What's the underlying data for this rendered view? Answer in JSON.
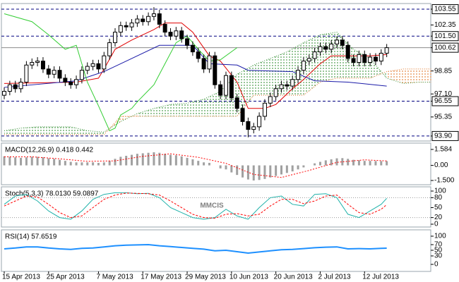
{
  "watermark": "MMCIS",
  "chart_data": [
    {
      "type": "candlestick",
      "categories": [
        "15 Apr 2013",
        null,
        null,
        null,
        null,
        null,
        null,
        null,
        "25 Apr 2013",
        null,
        null,
        null,
        null,
        null,
        null,
        null,
        null,
        "7 May 2013",
        null,
        null,
        null,
        null,
        null,
        null,
        null,
        "17 May 2013",
        null,
        null,
        null,
        null,
        null,
        null,
        null,
        "29 May 2013",
        null,
        null,
        null,
        null,
        null,
        null,
        null,
        "10 Jun 2013",
        null,
        null,
        null,
        null,
        null,
        null,
        null,
        "20 Jun 2013",
        null,
        null,
        null,
        null,
        null,
        null,
        null,
        "2 Jul 2013",
        null,
        null,
        null,
        null,
        null,
        null,
        null,
        "12 Jul 2013",
        null,
        null,
        null,
        null
      ],
      "open": [
        97.0,
        97.3,
        97.8,
        97.5,
        98.0,
        99.3,
        99.5,
        99.6,
        99.0,
        98.6,
        98.9,
        98.3,
        98.0,
        97.8,
        98.2,
        98.9,
        99.2,
        99.4,
        99.0,
        100.0,
        101.0,
        101.8,
        102.3,
        102.2,
        102.5,
        102.8,
        102.6,
        103.0,
        103.2,
        102.4,
        101.8,
        101.5,
        101.9,
        101.3,
        100.8,
        100.3,
        99.8,
        99.0,
        100.0,
        97.8,
        97.0,
        98.5,
        96.8,
        96.0,
        95.0,
        94.4,
        94.6,
        95.4,
        96.4,
        96.9,
        97.5,
        97.8,
        97.7,
        98.2,
        98.9,
        99.6,
        99.8,
        100.3,
        100.7,
        100.5,
        100.9,
        101.2,
        100.8,
        99.8,
        99.5,
        100.1,
        99.5,
        99.9,
        99.6,
        100.2
      ],
      "high": [
        97.6,
        98.1,
        98.1,
        98.3,
        99.6,
        99.8,
        99.9,
        99.9,
        99.3,
        99.2,
        99.2,
        98.6,
        98.3,
        98.5,
        99.2,
        99.5,
        99.7,
        99.7,
        100.3,
        101.3,
        102.1,
        102.6,
        102.6,
        102.8,
        103.1,
        103.1,
        103.3,
        103.7,
        103.5,
        102.7,
        102.1,
        102.2,
        102.2,
        101.6,
        101.1,
        100.6,
        100.1,
        100.3,
        100.3,
        98.1,
        98.8,
        98.8,
        97.1,
        96.3,
        95.3,
        94.9,
        95.7,
        96.7,
        97.2,
        97.8,
        98.1,
        98.1,
        98.5,
        99.2,
        99.9,
        100.1,
        100.6,
        101.0,
        101.0,
        101.2,
        101.5,
        101.5,
        101.1,
        100.1,
        100.4,
        100.4,
        100.2,
        100.2,
        100.5,
        100.9
      ],
      "low": [
        96.7,
        97.0,
        97.2,
        97.2,
        97.7,
        99.0,
        99.2,
        98.7,
        98.3,
        98.3,
        98.0,
        97.7,
        97.5,
        97.5,
        97.9,
        98.6,
        98.9,
        98.7,
        98.7,
        99.7,
        100.7,
        101.5,
        101.9,
        101.9,
        102.2,
        102.3,
        102.3,
        102.7,
        102.1,
        101.5,
        101.2,
        101.2,
        101.0,
        100.5,
        100.0,
        99.5,
        98.7,
        98.7,
        97.5,
        96.7,
        96.7,
        96.5,
        95.7,
        94.7,
        93.8,
        94.1,
        94.3,
        95.1,
        96.1,
        96.6,
        97.2,
        97.4,
        97.4,
        97.9,
        98.6,
        99.3,
        99.5,
        100.0,
        100.2,
        100.2,
        100.6,
        100.5,
        99.5,
        99.2,
        99.2,
        99.2,
        99.2,
        99.3,
        99.3,
        99.9
      ],
      "close": [
        97.3,
        97.8,
        97.5,
        98.0,
        99.3,
        99.5,
        99.6,
        99.0,
        98.6,
        98.9,
        98.3,
        98.0,
        97.8,
        98.2,
        98.9,
        99.2,
        99.4,
        99.0,
        100.0,
        101.0,
        101.8,
        102.3,
        102.2,
        102.5,
        102.8,
        102.6,
        103.0,
        103.2,
        102.4,
        101.8,
        101.5,
        101.9,
        101.3,
        100.8,
        100.3,
        99.8,
        99.0,
        100.0,
        97.8,
        97.0,
        98.5,
        96.8,
        96.0,
        95.0,
        94.4,
        94.6,
        95.4,
        96.4,
        96.9,
        97.5,
        97.8,
        97.7,
        98.2,
        98.9,
        99.6,
        99.8,
        100.3,
        100.7,
        100.5,
        100.9,
        101.2,
        100.8,
        99.8,
        99.5,
        100.1,
        99.5,
        99.9,
        99.6,
        100.2,
        100.62
      ],
      "bull_color": "#ffffff",
      "bear_color": "#000000",
      "ylim": [
        93.52,
        103.98
      ],
      "yticks": [
        103.55,
        102.35,
        {
          "value": 101.5,
          "label": "101.50"
        },
        100.62,
        98.85,
        {
          "value": 97.1,
          "label": "97.10"
        },
        96.55,
        95.35,
        {
          "value": 93.9,
          "label": "93.90"
        }
      ],
      "levels": [
        103.55,
        101.5,
        96.55,
        93.9
      ],
      "level_color": "#000080",
      "boxed_levels": true,
      "last_price": 100.62,
      "cloud": {
        "x": [
          0,
          3,
          6,
          9,
          12,
          15,
          18,
          21,
          24,
          27,
          30,
          33,
          36,
          39,
          42,
          45,
          48,
          51,
          54,
          57,
          60,
          63,
          66,
          69,
          72,
          75,
          77
        ],
        "span_a": [
          94.3,
          94.5,
          94.6,
          94.6,
          94.6,
          94.3,
          94.2,
          95.0,
          95.6,
          96.0,
          96.3,
          96.4,
          96.7,
          97.3,
          98.6,
          99.3,
          99.8,
          100.3,
          101.0,
          101.6,
          101.8,
          100.5,
          99.8,
          98.3,
          97.9,
          98.0,
          98.0
        ],
        "span_b": [
          94.0,
          94.0,
          94.0,
          94.0,
          94.0,
          94.0,
          94.0,
          95.4,
          95.4,
          95.4,
          95.4,
          95.4,
          95.4,
          95.4,
          95.4,
          97.0,
          97.0,
          97.0,
          97.0,
          98.0,
          98.3,
          98.3,
          98.3,
          98.8,
          99.0,
          99.0,
          99.0
        ],
        "colors": [
          "#2e8b2e",
          "#e07020"
        ]
      },
      "series": [
        {
          "color": "#e00000",
          "x": [
            0,
            13,
            17,
            18,
            20,
            23,
            27,
            29,
            32,
            34,
            37,
            39,
            42,
            44,
            47,
            49,
            52,
            54,
            57,
            59,
            62,
            66,
            69
          ],
          "values": [
            97.9,
            98.0,
            98.3,
            99.0,
            100.5,
            101.2,
            102.0,
            102.5,
            102.5,
            101.8,
            100.0,
            99.6,
            98.0,
            96.0,
            96.0,
            96.3,
            97.5,
            98.2,
            99.4,
            100.0,
            100.0,
            100.0,
            100.1
          ]
        },
        {
          "color": "#1a1aa8",
          "x": [
            0,
            13,
            18,
            22,
            28,
            34,
            37,
            42,
            44,
            52,
            56,
            62,
            69
          ],
          "values": [
            97.6,
            98.1,
            98.8,
            99.6,
            100.8,
            100.8,
            99.4,
            99.3,
            98.9,
            98.8,
            98.1,
            98.0,
            97.7
          ]
        },
        {
          "color": "#32cd32",
          "x": [
            0,
            5,
            8,
            11,
            13,
            14,
            15,
            17,
            19,
            20,
            21,
            23,
            24,
            27,
            29,
            31,
            33,
            35,
            37,
            39,
            42
          ],
          "values": [
            103.2,
            102.6,
            101.6,
            100.5,
            100.8,
            99.4,
            98.0,
            96.2,
            94.3,
            94.5,
            95.5,
            96.0,
            96.5,
            97.8,
            99.4,
            101.0,
            101.5,
            100.5,
            99.6,
            99.7,
            100.62
          ]
        }
      ]
    },
    {
      "type": "bar",
      "title": "MACD(12,26,9) 0.418 0.442",
      "values": [
        0.9,
        0.85,
        0.8,
        0.75,
        0.8,
        0.85,
        0.85,
        0.8,
        0.7,
        0.65,
        0.55,
        0.45,
        0.35,
        0.3,
        0.3,
        0.3,
        0.3,
        0.25,
        0.3,
        0.45,
        0.65,
        0.85,
        0.95,
        1.05,
        1.15,
        1.2,
        1.25,
        1.3,
        1.25,
        1.15,
        1.05,
        1.0,
        0.9,
        0.75,
        0.6,
        0.45,
        0.3,
        0.25,
        0.0,
        -0.3,
        -0.4,
        -0.7,
        -0.95,
        -1.2,
        -1.4,
        -1.5,
        -1.45,
        -1.35,
        -1.2,
        -1.05,
        -0.9,
        -0.75,
        -0.6,
        -0.4,
        -0.2,
        0.0,
        0.2,
        0.35,
        0.5,
        0.6,
        0.7,
        0.72,
        0.65,
        0.55,
        0.5,
        0.45,
        0.45,
        0.43,
        0.42,
        0.418
      ],
      "color": "#a0a0a0",
      "ylim": [
        -1.92,
        2.21
      ],
      "yticks": [
        1.584,
        {
          "value": 0,
          "label": "0.00"
        },
        {
          "value": -1.5,
          "label": "-1.500"
        }
      ],
      "series": [
        {
          "color": "#ff0000",
          "dashed": true,
          "x": [
            0,
            5,
            10,
            15,
            20,
            25,
            30,
            35,
            40,
            45,
            50,
            55,
            60,
            65,
            69
          ],
          "values": [
            0.85,
            0.85,
            0.65,
            0.4,
            0.45,
            0.9,
            1.15,
            0.8,
            0.2,
            -0.9,
            -1.2,
            -0.5,
            0.3,
            0.55,
            0.442
          ]
        }
      ]
    },
    {
      "type": "line",
      "title": "Stoch(5,3,3) 78.0130 59.0897",
      "ylim": [
        -8.5,
        112.8
      ],
      "yticks": [
        0,
        20,
        50,
        80,
        100
      ],
      "levels": [
        20,
        80
      ],
      "level_color": "#999999",
      "series": [
        {
          "color": "#20b2aa",
          "x": [
            0,
            2,
            4,
            6,
            8,
            10,
            12,
            14,
            16,
            18,
            20,
            22,
            24,
            26,
            28,
            30,
            32,
            34,
            36,
            38,
            40,
            42,
            44,
            46,
            48,
            50,
            52,
            54,
            56,
            58,
            60,
            62,
            64,
            66,
            68,
            69
          ],
          "values": [
            60,
            85,
            90,
            70,
            40,
            20,
            15,
            40,
            75,
            90,
            95,
            95,
            92,
            93,
            80,
            50,
            35,
            20,
            15,
            20,
            45,
            25,
            15,
            50,
            80,
            85,
            60,
            55,
            90,
            92,
            80,
            30,
            20,
            40,
            60,
            78.013
          ]
        },
        {
          "color": "#ff0000",
          "dashed": true,
          "x": [
            0,
            2,
            4,
            6,
            8,
            10,
            12,
            14,
            16,
            18,
            20,
            22,
            24,
            26,
            28,
            30,
            32,
            34,
            36,
            38,
            40,
            42,
            44,
            46,
            48,
            50,
            52,
            54,
            56,
            58,
            60,
            62,
            64,
            66,
            68,
            69
          ],
          "values": [
            55,
            70,
            85,
            82,
            60,
            35,
            20,
            25,
            50,
            75,
            88,
            94,
            93,
            92,
            88,
            70,
            50,
            30,
            20,
            18,
            30,
            32,
            25,
            30,
            55,
            75,
            75,
            62,
            70,
            85,
            88,
            60,
            35,
            30,
            45,
            59.0897
          ]
        }
      ]
    },
    {
      "type": "line",
      "title": "RSI(14) 57.6519",
      "ylim": [
        -25,
        122.5
      ],
      "yticks": [
        0,
        30,
        50,
        70,
        100
      ],
      "series": [
        {
          "color": "#1e90ff",
          "width": 2,
          "x": [
            0,
            2,
            4,
            6,
            8,
            10,
            12,
            14,
            16,
            18,
            20,
            22,
            24,
            26,
            28,
            30,
            32,
            34,
            36,
            38,
            40,
            42,
            44,
            46,
            48,
            50,
            52,
            54,
            56,
            58,
            60,
            62,
            64,
            66,
            68,
            69
          ],
          "values": [
            55,
            58,
            62,
            62,
            58,
            55,
            53,
            57,
            58,
            62,
            66,
            68,
            69,
            70,
            66,
            63,
            60,
            57,
            54,
            48,
            50,
            45,
            40,
            44,
            48,
            52,
            53,
            56,
            59,
            61,
            62,
            55,
            56,
            55,
            57,
            57.6519
          ]
        }
      ]
    }
  ]
}
